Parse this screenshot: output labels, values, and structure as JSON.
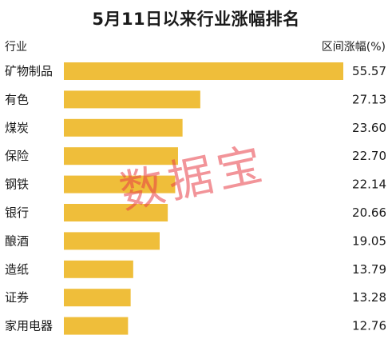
{
  "header": {
    "title": "5月11日以来行业涨幅排名",
    "left_label": "行业",
    "right_label": "区间涨幅(%)"
  },
  "watermark": "数据宝",
  "colors": {
    "bar": "#EFBE3A"
  },
  "chart_data": {
    "type": "bar",
    "orientation": "horizontal",
    "title": "5月11日以来行业涨幅排名",
    "xlabel": "",
    "ylabel": "",
    "categories": [
      "矿物制品",
      "有色",
      "煤炭",
      "保险",
      "钢铁",
      "银行",
      "酿酒",
      "造纸",
      "证券",
      "家用电器"
    ],
    "values": [
      55.57,
      27.13,
      23.6,
      22.7,
      22.14,
      20.66,
      19.05,
      13.79,
      13.28,
      12.76
    ],
    "value_labels": [
      "55.57",
      "27.13",
      "23.60",
      "22.70",
      "22.14",
      "20.66",
      "19.05",
      "13.79",
      "13.28",
      "12.76"
    ],
    "xlim": [
      0,
      55.57
    ],
    "grid": false,
    "legend": "none"
  }
}
